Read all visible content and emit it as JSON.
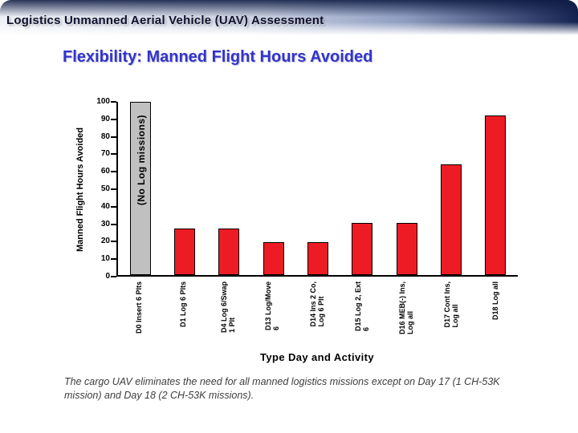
{
  "banner": {
    "title": "Logistics Unmanned Aerial Vehicle (UAV) Assessment"
  },
  "slide": {
    "title": "Flexibility: Manned Flight Hours Avoided",
    "footnote": "The cargo UAV eliminates the need for all manned logistics missions except on Day 17 (1 CH-53K mission) and Day 18 (2 CH-53K missions)."
  },
  "chart_data": {
    "type": "bar",
    "title": "Flexibility: Manned Flight Hours Avoided",
    "xlabel": "Type Day and Activity",
    "ylabel": "Manned Flight Hours Avoided",
    "annotation": "(No Log missions)",
    "ylim": [
      0,
      100
    ],
    "ytick_step": 10,
    "grid": false,
    "legend": false,
    "categories": [
      "D0 Insert 6 Plts",
      "D1 Log 6 Plts",
      "D4 Log 6/Swap\n1 Plt",
      "D13 Log/Move\n6",
      "D14 Ins 2 Co,\nLog 6 Plt",
      "D15 Log 2, Ext\n6",
      "D16 MEB(-) Ins,\nLog all",
      "D17 Cont Ins,\nLog all",
      "D18 Log all"
    ],
    "values": [
      100,
      27,
      27,
      19,
      19,
      30,
      30,
      64,
      92
    ],
    "bar_colors": [
      "#c0c0c0",
      "#ed1c24",
      "#ed1c24",
      "#ed1c24",
      "#ed1c24",
      "#ed1c24",
      "#ed1c24",
      "#ed1c24",
      "#ed1c24"
    ],
    "colors": {
      "bar_red": "#ed1c24",
      "bar_gray": "#c0c0c0",
      "title_blue": "#3333cc"
    }
  }
}
